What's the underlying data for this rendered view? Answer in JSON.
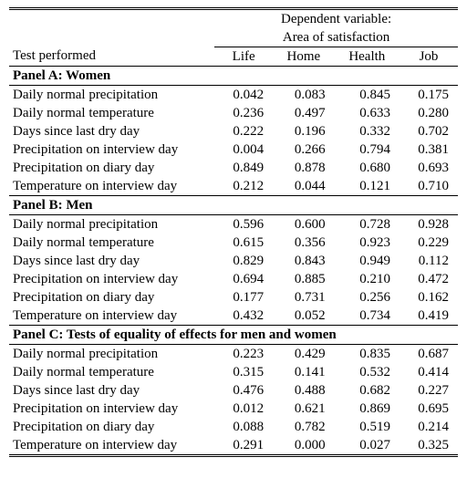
{
  "header": {
    "super_label": "Dependent variable:",
    "sub_label": "Area of satisfaction",
    "row_label": "Test performed",
    "columns": [
      "Life",
      "Home",
      "Health",
      "Job"
    ]
  },
  "panels": [
    {
      "title": "Panel A: Women",
      "rows": [
        {
          "label": "Daily normal precipitation",
          "vals": [
            "0.042",
            "0.083",
            "0.845",
            "0.175"
          ]
        },
        {
          "label": "Daily normal temperature",
          "vals": [
            "0.236",
            "0.497",
            "0.633",
            "0.280"
          ]
        },
        {
          "label": "Days since last dry day",
          "vals": [
            "0.222",
            "0.196",
            "0.332",
            "0.702"
          ]
        },
        {
          "label": "Precipitation on interview day",
          "vals": [
            "0.004",
            "0.266",
            "0.794",
            "0.381"
          ]
        },
        {
          "label": "Precipitation on diary day",
          "vals": [
            "0.849",
            "0.878",
            "0.680",
            "0.693"
          ]
        },
        {
          "label": "Temperature on interview day",
          "vals": [
            "0.212",
            "0.044",
            "0.121",
            "0.710"
          ]
        }
      ]
    },
    {
      "title": "Panel B: Men",
      "rows": [
        {
          "label": "Daily normal precipitation",
          "vals": [
            "0.596",
            "0.600",
            "0.728",
            "0.928"
          ]
        },
        {
          "label": "Daily normal temperature",
          "vals": [
            "0.615",
            "0.356",
            "0.923",
            "0.229"
          ]
        },
        {
          "label": "Days since last dry day",
          "vals": [
            "0.829",
            "0.843",
            "0.949",
            "0.112"
          ]
        },
        {
          "label": "Precipitation on interview day",
          "vals": [
            "0.694",
            "0.885",
            "0.210",
            "0.472"
          ]
        },
        {
          "label": "Precipitation on diary day",
          "vals": [
            "0.177",
            "0.731",
            "0.256",
            "0.162"
          ]
        },
        {
          "label": "Temperature on interview day",
          "vals": [
            "0.432",
            "0.052",
            "0.734",
            "0.419"
          ]
        }
      ]
    },
    {
      "title": "Panel C: Tests of equality of effects for men and women",
      "rows": [
        {
          "label": "Daily normal precipitation",
          "vals": [
            "0.223",
            "0.429",
            "0.835",
            "0.687"
          ]
        },
        {
          "label": "Daily normal temperature",
          "vals": [
            "0.315",
            "0.141",
            "0.532",
            "0.414"
          ]
        },
        {
          "label": "Days since last dry day",
          "vals": [
            "0.476",
            "0.488",
            "0.682",
            "0.227"
          ]
        },
        {
          "label": "Precipitation on interview day",
          "vals": [
            "0.012",
            "0.621",
            "0.869",
            "0.695"
          ]
        },
        {
          "label": "Precipitation on diary day",
          "vals": [
            "0.088",
            "0.782",
            "0.519",
            "0.214"
          ]
        },
        {
          "label": "Temperature on interview day",
          "vals": [
            "0.291",
            "0.000",
            "0.027",
            "0.325"
          ]
        }
      ]
    }
  ]
}
